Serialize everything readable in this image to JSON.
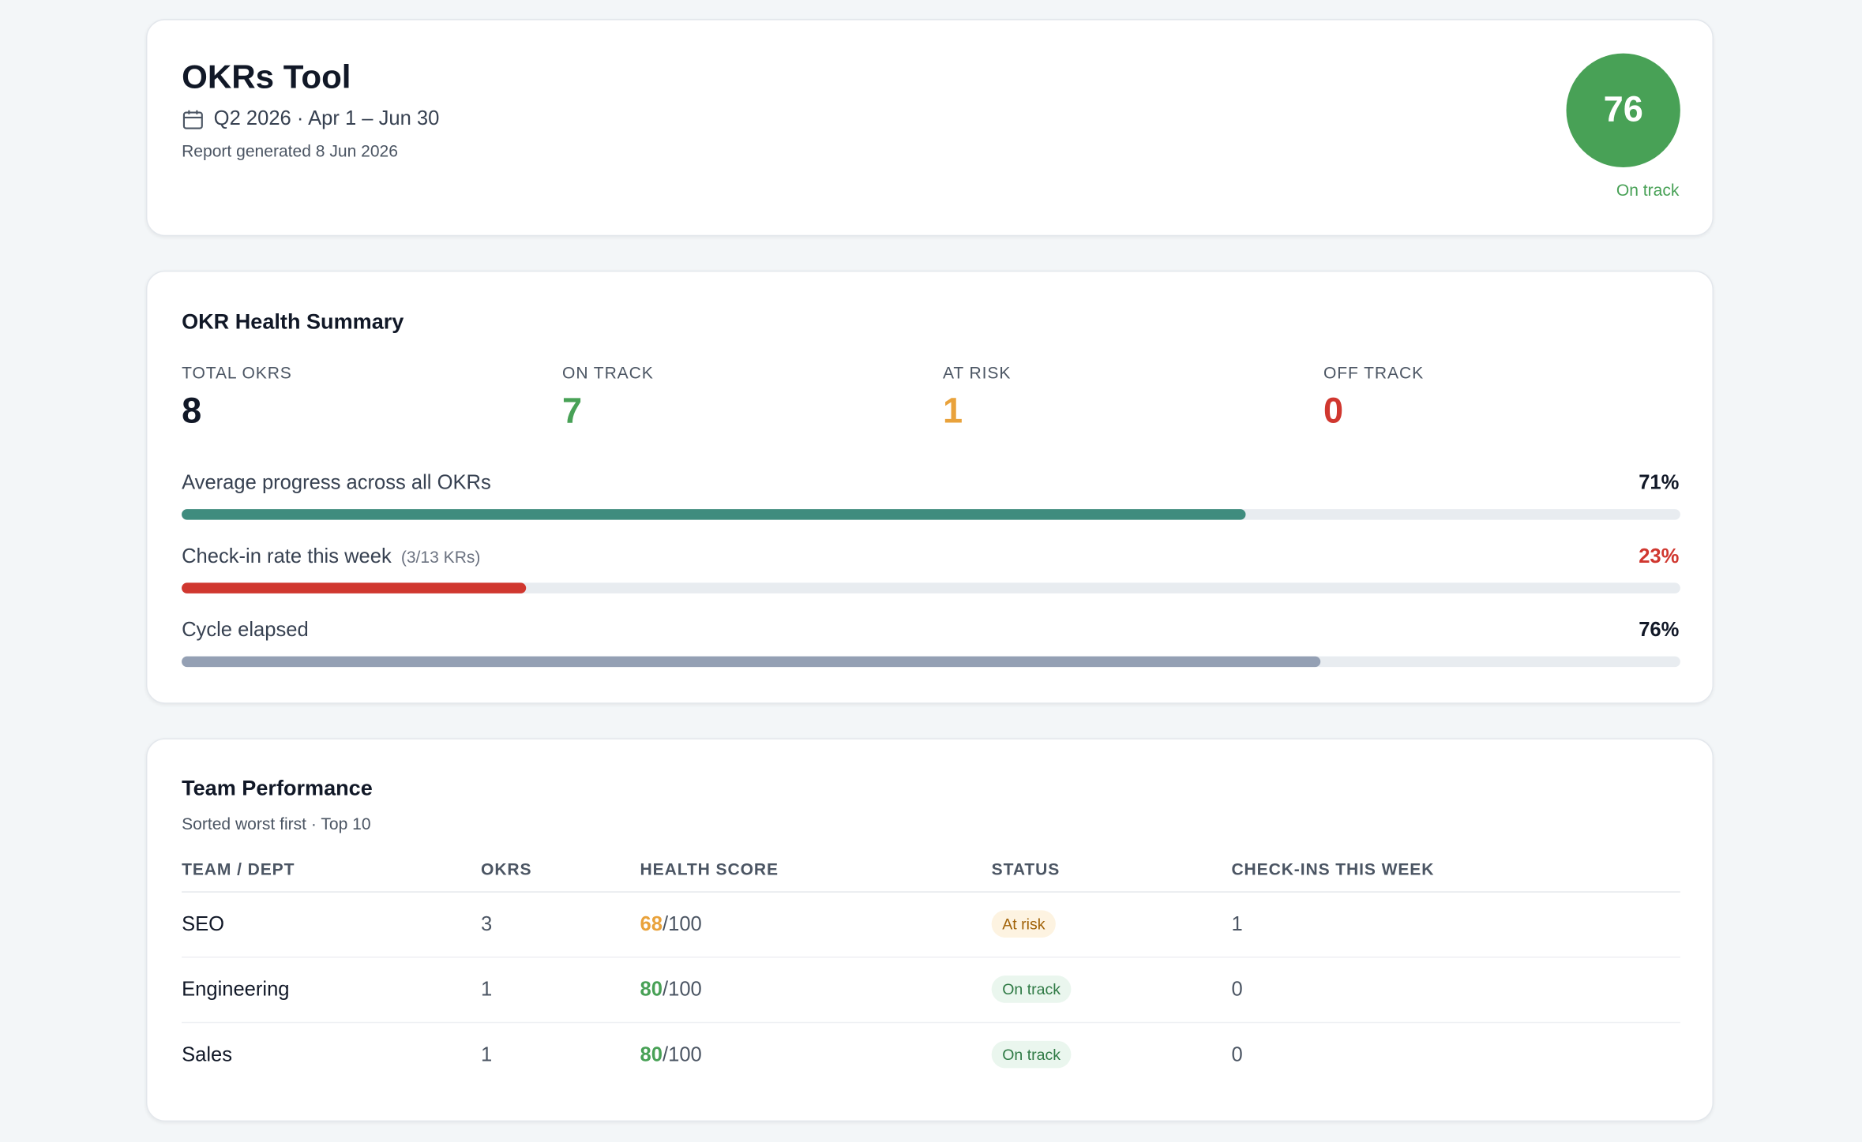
{
  "header": {
    "title": "OKRs Tool",
    "period": "Q2 2026 · Apr 1 – Jun 30",
    "generated": "Report generated 8 Jun 2026",
    "score": 76,
    "score_status": "On track",
    "score_color": "#48a156"
  },
  "summary": {
    "title": "OKR Health Summary",
    "stats": [
      {
        "label": "TOTAL OKRS",
        "value": 8,
        "color": "#111827"
      },
      {
        "label": "ON TRACK",
        "value": 7,
        "color": "#48a156"
      },
      {
        "label": "AT RISK",
        "value": 1,
        "color": "#e9a23b"
      },
      {
        "label": "OFF TRACK",
        "value": 0,
        "color": "#d0372f"
      }
    ],
    "progress": [
      {
        "label": "Average progress across all OKRs",
        "value": 71,
        "value_label": "71%",
        "color": "#3f8c7e",
        "label_color": "#111827"
      },
      {
        "label": "Check-in rate this week",
        "note": "(3/13 KRs)",
        "value": 23,
        "value_label": "23%",
        "color": "#d0372f",
        "label_color": "#d0372f"
      },
      {
        "label": "Cycle elapsed",
        "value": 76,
        "value_label": "76%",
        "color": "#94a0b4",
        "label_color": "#111827"
      }
    ]
  },
  "team": {
    "title": "Team Performance",
    "subtitle": "Sorted worst first · Top 10",
    "columns": [
      "TEAM / DEPT",
      "OKRS",
      "HEALTH SCORE",
      "STATUS",
      "CHECK-INS THIS WEEK"
    ],
    "score_max_label": "/100",
    "rows": [
      {
        "team": "SEO",
        "okrs": 3,
        "score": 68,
        "score_color": "#e9a23b",
        "status": "At risk",
        "status_color": "#a16207",
        "status_bg": "#fdf3e1",
        "checkins": 1
      },
      {
        "team": "Engineering",
        "okrs": 1,
        "score": 80,
        "score_color": "#48a156",
        "status": "On track",
        "status_color": "#2f7a45",
        "status_bg": "#eaf6ee",
        "checkins": 0
      },
      {
        "team": "Sales",
        "okrs": 1,
        "score": 80,
        "score_color": "#48a156",
        "status": "On track",
        "status_color": "#2f7a45",
        "status_bg": "#eaf6ee",
        "checkins": 0
      }
    ]
  }
}
